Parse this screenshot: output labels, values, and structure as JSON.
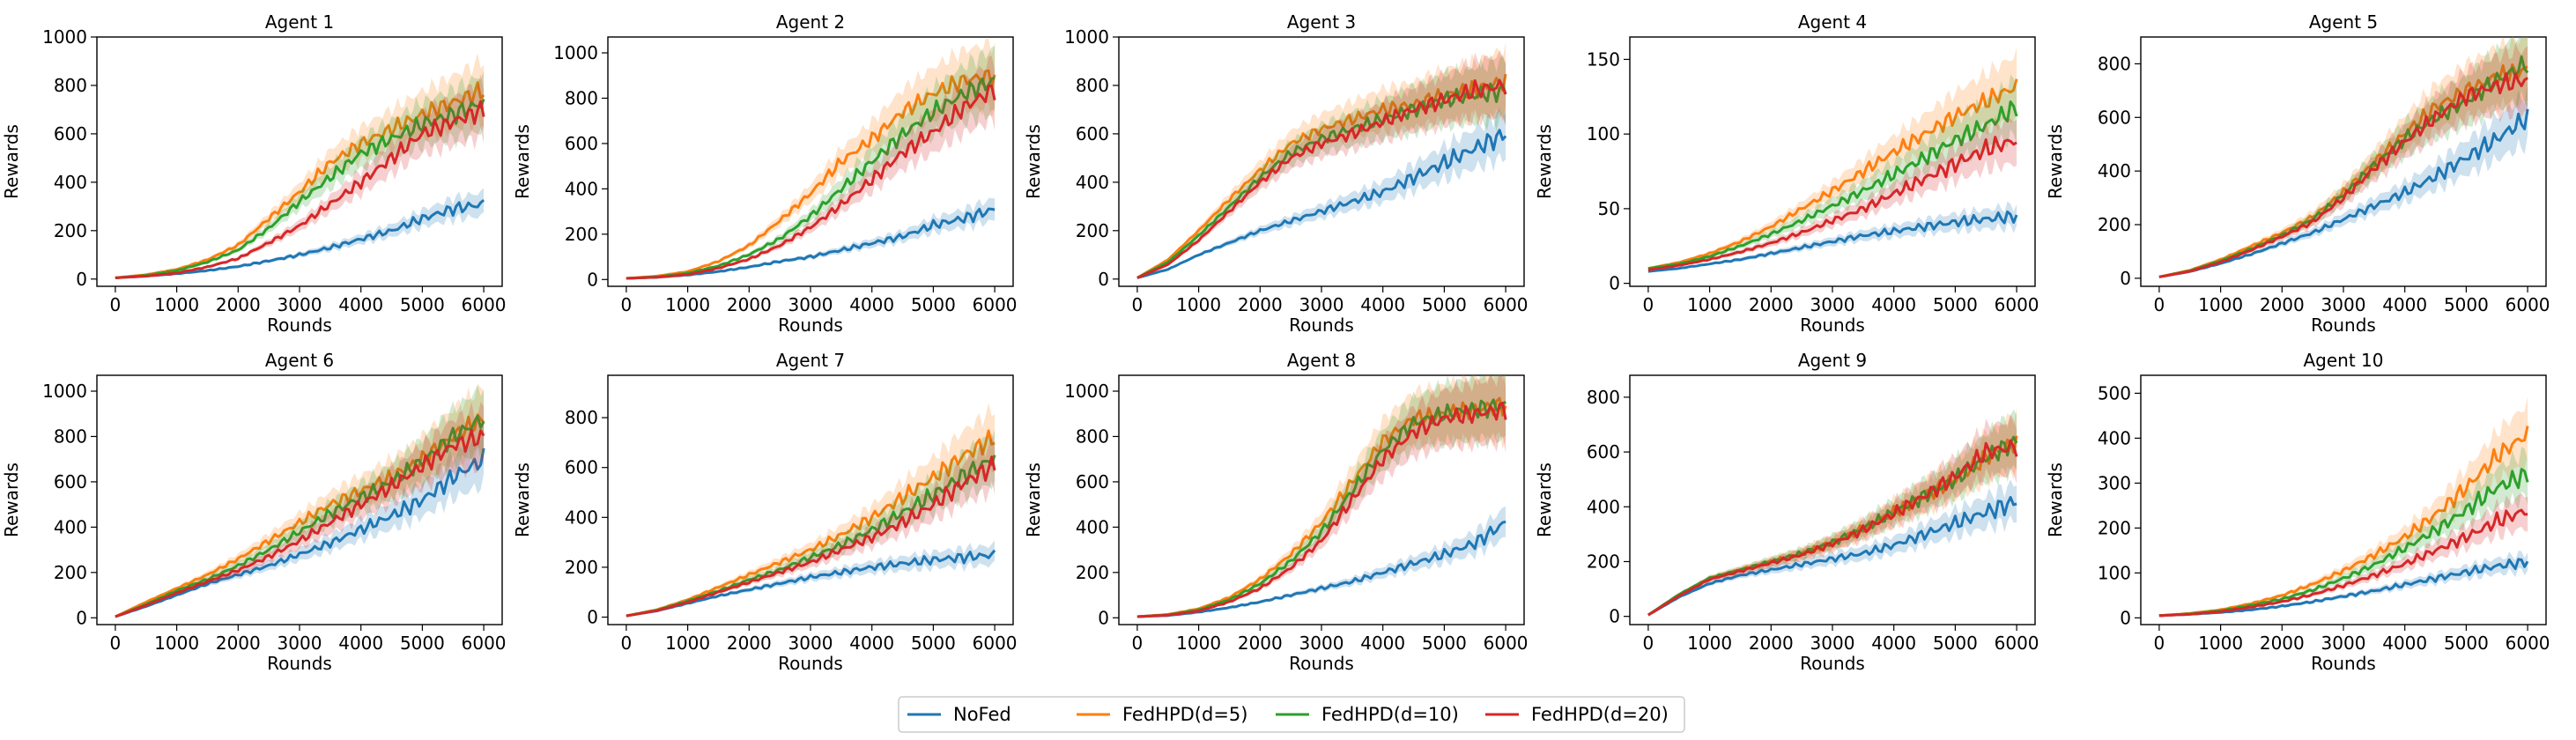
{
  "figure": {
    "legend": [
      "NoFed",
      "FedHPD(d=5)",
      "FedHPD(d=10)",
      "FedHPD(d=20)"
    ],
    "series_colors": [
      "#1f77b4",
      "#ff7f0e",
      "#2ca02c",
      "#d62728"
    ]
  },
  "chart_data": [
    {
      "type": "line",
      "title": "Agent 1",
      "xlabel": "Rounds",
      "ylabel": "Rewards",
      "xlim": [
        -300,
        6300
      ],
      "ylim": [
        -30,
        1000
      ],
      "xticks": [
        0,
        1000,
        2000,
        3000,
        4000,
        5000,
        6000
      ],
      "yticks": [
        0,
        200,
        400,
        600,
        800,
        1000
      ],
      "x": [
        0,
        500,
        1000,
        1500,
        2000,
        2500,
        3000,
        3500,
        4000,
        4500,
        5000,
        5500,
        6000
      ],
      "series": [
        {
          "name": "NoFed",
          "values": [
            5,
            12,
            22,
            35,
            52,
            75,
            100,
            130,
            165,
            200,
            250,
            290,
            310
          ]
        },
        {
          "name": "FedHPD(d=5)",
          "values": [
            5,
            18,
            40,
            80,
            140,
            250,
            360,
            480,
            560,
            620,
            680,
            730,
            780
          ]
        },
        {
          "name": "FedHPD(d=10)",
          "values": [
            5,
            15,
            35,
            70,
            120,
            210,
            320,
            420,
            520,
            580,
            640,
            680,
            730
          ]
        },
        {
          "name": "FedHPD(d=20)",
          "values": [
            5,
            12,
            25,
            50,
            85,
            150,
            220,
            310,
            400,
            500,
            600,
            650,
            700
          ]
        }
      ]
    },
    {
      "type": "line",
      "title": "Agent 2",
      "xlabel": "Rounds",
      "ylabel": "Rewards",
      "xlim": [
        -300,
        6300
      ],
      "ylim": [
        -30,
        1070
      ],
      "xticks": [
        0,
        1000,
        2000,
        3000,
        4000,
        5000,
        6000
      ],
      "yticks": [
        0,
        200,
        400,
        600,
        800,
        1000
      ],
      "x": [
        0,
        500,
        1000,
        1500,
        2000,
        2500,
        3000,
        3500,
        4000,
        4500,
        5000,
        5500,
        6000
      ],
      "series": [
        {
          "name": "NoFed",
          "values": [
            5,
            10,
            20,
            35,
            55,
            80,
            100,
            130,
            160,
            190,
            240,
            270,
            310
          ]
        },
        {
          "name": "FedHPD(d=5)",
          "values": [
            5,
            15,
            35,
            80,
            150,
            260,
            380,
            520,
            620,
            740,
            820,
            880,
            900
          ]
        },
        {
          "name": "FedHPD(d=10)",
          "values": [
            5,
            12,
            28,
            60,
            110,
            180,
            280,
            400,
            520,
            640,
            740,
            820,
            880
          ]
        },
        {
          "name": "FedHPD(d=20)",
          "values": [
            5,
            10,
            22,
            50,
            90,
            150,
            230,
            330,
            440,
            560,
            650,
            760,
            840
          ]
        }
      ]
    },
    {
      "type": "line",
      "title": "Agent 3",
      "xlabel": "Rounds",
      "ylabel": "Rewards",
      "xlim": [
        -300,
        6300
      ],
      "ylim": [
        -30,
        1000
      ],
      "xticks": [
        0,
        1000,
        2000,
        3000,
        4000,
        5000,
        6000
      ],
      "yticks": [
        0,
        200,
        400,
        600,
        800,
        1000
      ],
      "x": [
        0,
        500,
        1000,
        1500,
        2000,
        2500,
        3000,
        3500,
        4000,
        4500,
        5000,
        5500,
        6000
      ],
      "series": [
        {
          "name": "NoFed",
          "values": [
            5,
            40,
            100,
            150,
            200,
            240,
            280,
            320,
            360,
            420,
            480,
            540,
            600
          ]
        },
        {
          "name": "FedHPD(d=5)",
          "values": [
            5,
            80,
            200,
            330,
            450,
            560,
            620,
            660,
            700,
            720,
            760,
            780,
            820
          ]
        },
        {
          "name": "FedHPD(d=10)",
          "values": [
            5,
            70,
            180,
            300,
            420,
            520,
            580,
            620,
            660,
            700,
            740,
            760,
            780
          ]
        },
        {
          "name": "FedHPD(d=20)",
          "values": [
            5,
            60,
            160,
            280,
            400,
            500,
            560,
            600,
            650,
            700,
            740,
            780,
            800
          ]
        }
      ]
    },
    {
      "type": "line",
      "title": "Agent 4",
      "xlabel": "Rounds",
      "ylabel": "Rewards",
      "xlim": [
        -300,
        6300
      ],
      "ylim": [
        -2,
        165
      ],
      "xticks": [
        0,
        1000,
        2000,
        3000,
        4000,
        5000,
        6000
      ],
      "yticks": [
        0,
        50,
        100,
        150
      ],
      "x": [
        0,
        500,
        1000,
        1500,
        2000,
        2500,
        3000,
        3500,
        4000,
        4500,
        5000,
        5500,
        6000
      ],
      "series": [
        {
          "name": "NoFed",
          "values": [
            8,
            10,
            13,
            16,
            20,
            24,
            28,
            32,
            35,
            38,
            41,
            43,
            45
          ]
        },
        {
          "name": "FedHPD(d=5)",
          "values": [
            10,
            14,
            20,
            28,
            38,
            50,
            62,
            75,
            88,
            100,
            112,
            122,
            132
          ]
        },
        {
          "name": "FedHPD(d=10)",
          "values": [
            10,
            13,
            18,
            25,
            33,
            42,
            52,
            62,
            73,
            84,
            96,
            106,
            118
          ]
        },
        {
          "name": "FedHPD(d=20)",
          "values": [
            9,
            12,
            16,
            21,
            27,
            34,
            42,
            50,
            60,
            70,
            80,
            90,
            96
          ]
        }
      ]
    },
    {
      "type": "line",
      "title": "Agent 5",
      "xlabel": "Rounds",
      "ylabel": "Rewards",
      "xlim": [
        -300,
        6300
      ],
      "ylim": [
        -30,
        900
      ],
      "xticks": [
        0,
        1000,
        2000,
        3000,
        4000,
        5000,
        6000
      ],
      "yticks": [
        0,
        200,
        400,
        600,
        800
      ],
      "x": [
        0,
        500,
        1000,
        1500,
        2000,
        2500,
        3000,
        3500,
        4000,
        4500,
        5000,
        5500,
        6000
      ],
      "series": [
        {
          "name": "NoFed",
          "values": [
            5,
            25,
            55,
            90,
            130,
            170,
            220,
            270,
            320,
            380,
            450,
            520,
            600
          ]
        },
        {
          "name": "FedHPD(d=5)",
          "values": [
            5,
            30,
            70,
            120,
            170,
            230,
            320,
            430,
            540,
            640,
            700,
            750,
            780
          ]
        },
        {
          "name": "FedHPD(d=10)",
          "values": [
            5,
            28,
            65,
            110,
            160,
            220,
            310,
            420,
            520,
            600,
            660,
            740,
            800
          ]
        },
        {
          "name": "FedHPD(d=20)",
          "values": [
            5,
            26,
            60,
            105,
            155,
            210,
            300,
            410,
            510,
            600,
            680,
            720,
            740
          ]
        }
      ]
    },
    {
      "type": "line",
      "title": "Agent 6",
      "xlabel": "Rounds",
      "ylabel": "Rewards",
      "xlim": [
        -300,
        6300
      ],
      "ylim": [
        -30,
        1070
      ],
      "xticks": [
        0,
        1000,
        2000,
        3000,
        4000,
        5000,
        6000
      ],
      "yticks": [
        0,
        200,
        400,
        600,
        800,
        1000
      ],
      "x": [
        0,
        500,
        1000,
        1500,
        2000,
        2500,
        3000,
        3500,
        4000,
        4500,
        5000,
        5500,
        6000
      ],
      "series": [
        {
          "name": "NoFed",
          "values": [
            5,
            50,
            100,
            150,
            190,
            230,
            280,
            330,
            390,
            450,
            520,
            620,
            700
          ]
        },
        {
          "name": "FedHPD(d=5)",
          "values": [
            5,
            70,
            130,
            190,
            260,
            340,
            420,
            500,
            560,
            620,
            700,
            800,
            880
          ]
        },
        {
          "name": "FedHPD(d=10)",
          "values": [
            5,
            60,
            120,
            170,
            230,
            300,
            380,
            460,
            530,
            600,
            690,
            800,
            880
          ]
        },
        {
          "name": "FedHPD(d=20)",
          "values": [
            5,
            55,
            110,
            160,
            210,
            270,
            340,
            420,
            500,
            580,
            670,
            760,
            800
          ]
        }
      ]
    },
    {
      "type": "line",
      "title": "Agent 7",
      "xlabel": "Rounds",
      "ylabel": "Rewards",
      "xlim": [
        -300,
        6300
      ],
      "ylim": [
        -30,
        970
      ],
      "xticks": [
        0,
        1000,
        2000,
        3000,
        4000,
        5000,
        6000
      ],
      "yticks": [
        0,
        200,
        400,
        600,
        800
      ],
      "x": [
        0,
        500,
        1000,
        1500,
        2000,
        2500,
        3000,
        3500,
        4000,
        4500,
        5000,
        5500,
        6000
      ],
      "series": [
        {
          "name": "NoFed",
          "values": [
            5,
            25,
            55,
            85,
            110,
            135,
            160,
            180,
            200,
            215,
            230,
            240,
            250
          ]
        },
        {
          "name": "FedHPD(d=5)",
          "values": [
            5,
            30,
            70,
            120,
            170,
            220,
            270,
            330,
            400,
            480,
            560,
            650,
            720
          ]
        },
        {
          "name": "FedHPD(d=10)",
          "values": [
            5,
            28,
            65,
            105,
            150,
            190,
            240,
            290,
            350,
            420,
            490,
            570,
            640
          ]
        },
        {
          "name": "FedHPD(d=20)",
          "values": [
            5,
            26,
            60,
            100,
            140,
            180,
            220,
            270,
            320,
            380,
            450,
            540,
            610
          ]
        }
      ]
    },
    {
      "type": "line",
      "title": "Agent 8",
      "xlabel": "Rounds",
      "ylabel": "Rewards",
      "xlim": [
        -300,
        6300
      ],
      "ylim": [
        -30,
        1070
      ],
      "xticks": [
        0,
        1000,
        2000,
        3000,
        4000,
        5000,
        6000
      ],
      "yticks": [
        0,
        200,
        400,
        600,
        800,
        1000
      ],
      "x": [
        0,
        500,
        1000,
        1500,
        2000,
        2500,
        3000,
        3500,
        4000,
        4500,
        5000,
        5500,
        6000
      ],
      "series": [
        {
          "name": "NoFed",
          "values": [
            5,
            10,
            25,
            45,
            70,
            100,
            130,
            160,
            200,
            240,
            280,
            330,
            420
          ]
        },
        {
          "name": "FedHPD(d=5)",
          "values": [
            5,
            15,
            40,
            90,
            170,
            280,
            420,
            600,
            780,
            880,
            900,
            920,
            940
          ]
        },
        {
          "name": "FedHPD(d=10)",
          "values": [
            5,
            13,
            35,
            80,
            150,
            250,
            380,
            560,
            740,
            860,
            900,
            920,
            940
          ]
        },
        {
          "name": "FedHPD(d=20)",
          "values": [
            5,
            12,
            30,
            70,
            130,
            220,
            340,
            520,
            700,
            820,
            880,
            900,
            920
          ]
        }
      ]
    },
    {
      "type": "line",
      "title": "Agent 9",
      "xlabel": "Rounds",
      "ylabel": "Rewards",
      "xlim": [
        -300,
        6300
      ],
      "ylim": [
        -30,
        880
      ],
      "xticks": [
        0,
        1000,
        2000,
        3000,
        4000,
        5000,
        6000
      ],
      "yticks": [
        0,
        200,
        400,
        600,
        800
      ],
      "x": [
        0,
        500,
        1000,
        1500,
        2000,
        2500,
        3000,
        3500,
        4000,
        4500,
        5000,
        5500,
        6000
      ],
      "series": [
        {
          "name": "NoFed",
          "values": [
            5,
            70,
            120,
            150,
            170,
            190,
            210,
            230,
            260,
            300,
            340,
            380,
            420
          ]
        },
        {
          "name": "FedHPD(d=5)",
          "values": [
            5,
            80,
            140,
            170,
            200,
            230,
            270,
            320,
            380,
            440,
            500,
            580,
            640
          ]
        },
        {
          "name": "FedHPD(d=10)",
          "values": [
            5,
            80,
            140,
            170,
            200,
            230,
            270,
            320,
            380,
            440,
            500,
            580,
            640
          ]
        },
        {
          "name": "FedHPD(d=20)",
          "values": [
            5,
            75,
            135,
            165,
            195,
            225,
            265,
            315,
            375,
            440,
            510,
            600,
            620
          ]
        }
      ]
    },
    {
      "type": "line",
      "title": "Agent 10",
      "xlabel": "Rounds",
      "ylabel": "Rewards",
      "xlim": [
        -300,
        6300
      ],
      "ylim": [
        -15,
        540
      ],
      "xticks": [
        0,
        1000,
        2000,
        3000,
        4000,
        5000,
        6000
      ],
      "yticks": [
        0,
        100,
        200,
        300,
        400,
        500
      ],
      "x": [
        0,
        500,
        1000,
        1500,
        2000,
        2500,
        3000,
        3500,
        4000,
        4500,
        5000,
        5500,
        6000
      ],
      "series": [
        {
          "name": "NoFed",
          "values": [
            5,
            8,
            12,
            18,
            26,
            36,
            48,
            60,
            74,
            88,
            102,
            115,
            125
          ]
        },
        {
          "name": "FedHPD(d=5)",
          "values": [
            5,
            10,
            18,
            32,
            50,
            75,
            105,
            140,
            180,
            230,
            290,
            360,
            410
          ]
        },
        {
          "name": "FedHPD(d=10)",
          "values": [
            5,
            9,
            16,
            28,
            42,
            62,
            88,
            118,
            155,
            195,
            240,
            290,
            320
          ]
        },
        {
          "name": "FedHPD(d=20)",
          "values": [
            5,
            8,
            14,
            24,
            36,
            52,
            72,
            95,
            120,
            150,
            180,
            215,
            240
          ]
        }
      ]
    }
  ]
}
